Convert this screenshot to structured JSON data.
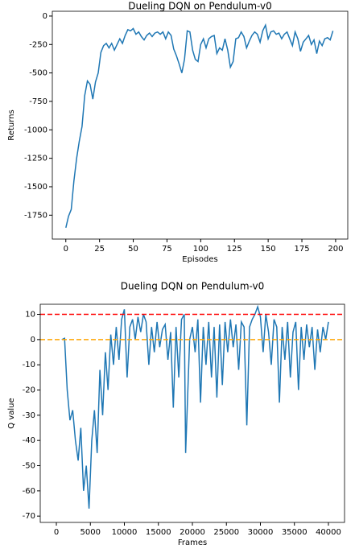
{
  "chart_data": [
    {
      "type": "line",
      "title": "Dueling DQN on Pendulum-v0",
      "x_label": "Episodes",
      "y_label": "Returns",
      "xlim": [
        -10,
        209
      ],
      "ylim": [
        -1960,
        42
      ],
      "xticks": [
        0,
        25,
        50,
        75,
        100,
        125,
        150,
        175,
        200
      ],
      "yticks": [
        0,
        -250,
        -500,
        -750,
        -1000,
        -1250,
        -1500,
        -1750
      ],
      "series": [
        {
          "color": "#1f77b4",
          "x": [
            0,
            2,
            4,
            6,
            8,
            10,
            12,
            14,
            16,
            18,
            20,
            22,
            24,
            26,
            28,
            30,
            32,
            34,
            36,
            38,
            40,
            42,
            44,
            46,
            48,
            50,
            52,
            54,
            56,
            58,
            60,
            62,
            64,
            66,
            68,
            70,
            72,
            74,
            76,
            78,
            80,
            82,
            84,
            86,
            88,
            90,
            92,
            94,
            96,
            98,
            100,
            102,
            104,
            106,
            108,
            110,
            112,
            114,
            116,
            118,
            120,
            122,
            124,
            126,
            128,
            130,
            132,
            134,
            136,
            138,
            140,
            142,
            144,
            146,
            148,
            150,
            152,
            154,
            156,
            158,
            160,
            162,
            164,
            166,
            168,
            170,
            172,
            174,
            176,
            178,
            180,
            182,
            184,
            186,
            188,
            190,
            192,
            194,
            196,
            198
          ],
          "values": [
            -1860,
            -1760,
            -1700,
            -1450,
            -1250,
            -1100,
            -970,
            -700,
            -570,
            -600,
            -730,
            -580,
            -500,
            -320,
            -260,
            -240,
            -280,
            -240,
            -300,
            -250,
            -200,
            -240,
            -170,
            -120,
            -130,
            -110,
            -160,
            -140,
            -180,
            -210,
            -170,
            -150,
            -180,
            -150,
            -140,
            -160,
            -140,
            -200,
            -140,
            -170,
            -290,
            -350,
            -420,
            -500,
            -380,
            -130,
            -140,
            -300,
            -380,
            -400,
            -250,
            -200,
            -280,
            -200,
            -180,
            -170,
            -330,
            -280,
            -300,
            -200,
            -300,
            -450,
            -400,
            -200,
            -190,
            -140,
            -180,
            -280,
            -220,
            -170,
            -140,
            -160,
            -230,
            -130,
            -80,
            -200,
            -140,
            -130,
            -160,
            -150,
            -200,
            -160,
            -140,
            -200,
            -260,
            -140,
            -200,
            -310,
            -230,
            -200,
            -170,
            -250,
            -210,
            -330,
            -220,
            -260,
            -200,
            -190,
            -210,
            -130
          ]
        }
      ]
    },
    {
      "type": "line",
      "title": "Dueling DQN on Pendulum-v0",
      "x_label": "Frames",
      "y_label": "Q value",
      "xlim": [
        -2370,
        42370
      ],
      "ylim": [
        -72.5,
        14
      ],
      "xticks": [
        0,
        5000,
        10000,
        15000,
        20000,
        25000,
        30000,
        35000,
        40000
      ],
      "yticks": [
        10,
        0,
        -10,
        -20,
        -30,
        -40,
        -50,
        -60,
        -70
      ],
      "hlines": [
        {
          "y": 10,
          "color": "#ff0000"
        },
        {
          "y": 0,
          "color": "#ffa500"
        }
      ],
      "series": [
        {
          "color": "#1f77b4",
          "x": [
            800,
            1200,
            1600,
            2000,
            2400,
            2800,
            3200,
            3600,
            4000,
            4400,
            4800,
            5200,
            5600,
            6000,
            6400,
            6800,
            7200,
            7600,
            8000,
            8400,
            8800,
            9200,
            9600,
            10000,
            10400,
            10800,
            11200,
            11600,
            12000,
            12400,
            12800,
            13200,
            13600,
            14000,
            14400,
            14800,
            15200,
            15600,
            16000,
            16400,
            16800,
            17200,
            17600,
            18000,
            18400,
            18800,
            19000,
            19600,
            20000,
            20400,
            20800,
            21200,
            21600,
            22000,
            22400,
            22800,
            23200,
            23600,
            24000,
            24400,
            24800,
            25200,
            25600,
            26000,
            26400,
            26800,
            27200,
            27600,
            28000,
            28400,
            28800,
            29200,
            29600,
            30000,
            30400,
            30800,
            31200,
            31600,
            32000,
            32400,
            32800,
            33200,
            33600,
            34000,
            34400,
            34800,
            35200,
            35600,
            36000,
            36400,
            36800,
            37200,
            37600,
            38000,
            38400,
            38800,
            39200,
            39600,
            40000
          ],
          "values": [
            0,
            0.5,
            -20,
            -32,
            -28,
            -40,
            -48,
            -35,
            -60,
            -50,
            -67,
            -40,
            -28,
            -45,
            -12,
            -30,
            -5,
            -20,
            2,
            -10,
            5,
            -8,
            8,
            12,
            -15,
            5,
            8,
            0,
            9,
            3,
            10,
            7,
            -10,
            5,
            -5,
            7,
            -3,
            4,
            6,
            -8,
            3,
            -27,
            5,
            -15,
            8,
            10,
            -45,
            0,
            5,
            -5,
            8,
            -25,
            5,
            -10,
            7,
            -15,
            5,
            -23,
            6,
            -18,
            7,
            -5,
            8,
            -3,
            6,
            -12,
            7,
            5,
            -34,
            5,
            8,
            10,
            13,
            9,
            -5,
            10,
            3,
            -10,
            8,
            5,
            -25,
            5,
            -8,
            7,
            -15,
            3,
            7,
            -20,
            5,
            -8,
            6,
            -3,
            5,
            -12,
            4,
            -5,
            5,
            0,
            7
          ]
        }
      ]
    }
  ]
}
